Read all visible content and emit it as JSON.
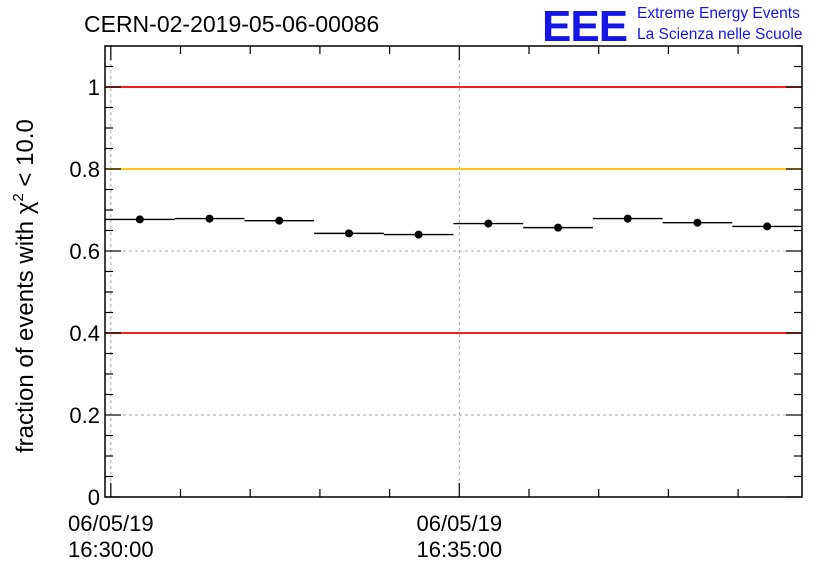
{
  "title": "CERN-02-2019-05-06-00086",
  "logo": {
    "mark": "EEE",
    "line1": "Extreme Energy Events",
    "line2": "La Scienza nelle Scuole",
    "color": "#1515e6"
  },
  "chart_data": {
    "type": "scatter",
    "ylabel": "fraction of events with",
    "ylabel_symbol": "χ",
    "ylabel_sup": "2",
    "ylabel_suffix": "< 10.0",
    "ylim": [
      0,
      1.1
    ],
    "yticks": [
      {
        "value": 0,
        "label": "0"
      },
      {
        "value": 0.2,
        "label": "0.2"
      },
      {
        "value": 0.4,
        "label": "0.4"
      },
      {
        "value": 0.6,
        "label": "0.6"
      },
      {
        "value": 0.8,
        "label": "0.8"
      },
      {
        "value": 1,
        "label": "1"
      }
    ],
    "xlim": [
      "16:29:55",
      "16:39:55"
    ],
    "xticks": [
      {
        "time": "16:30:00",
        "date": "06/05/19"
      },
      {
        "time": "16:35:00",
        "date": "06/05/19"
      }
    ],
    "grid": true,
    "reference_lines": [
      {
        "value": 1.0,
        "color": "#ee0000"
      },
      {
        "value": 0.8,
        "color": "#ffbf00"
      },
      {
        "value": 0.4,
        "color": "#ee0000"
      }
    ],
    "series": [
      {
        "points": [
          {
            "start": "16:29:55",
            "end": "16:30:55",
            "y": 0.677
          },
          {
            "start": "16:30:55",
            "end": "16:31:55",
            "y": 0.679
          },
          {
            "start": "16:31:55",
            "end": "16:32:55",
            "y": 0.674
          },
          {
            "start": "16:32:55",
            "end": "16:33:55",
            "y": 0.643
          },
          {
            "start": "16:33:55",
            "end": "16:34:55",
            "y": 0.64
          },
          {
            "start": "16:34:55",
            "end": "16:35:55",
            "y": 0.667
          },
          {
            "start": "16:35:55",
            "end": "16:36:55",
            "y": 0.657
          },
          {
            "start": "16:36:55",
            "end": "16:37:55",
            "y": 0.679
          },
          {
            "start": "16:37:55",
            "end": "16:38:55",
            "y": 0.669
          },
          {
            "start": "16:38:55",
            "end": "16:39:55",
            "y": 0.66
          }
        ]
      }
    ]
  }
}
